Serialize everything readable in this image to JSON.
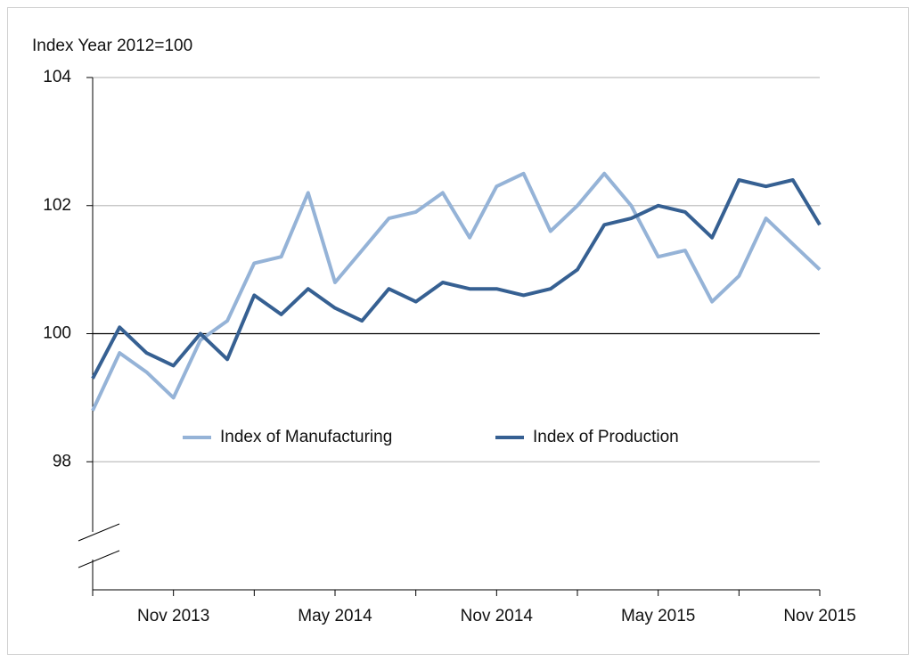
{
  "chart_data": {
    "type": "line",
    "title": "Index Year 2012=100",
    "categories": [
      null,
      null,
      null,
      "Nov 2013",
      null,
      null,
      null,
      null,
      null,
      "May 2014",
      null,
      null,
      null,
      null,
      null,
      "Nov 2014",
      null,
      null,
      null,
      null,
      null,
      "May 2015",
      null,
      null,
      null,
      null,
      null,
      "Nov 2015"
    ],
    "series": [
      {
        "name": "Index of Manufacturing",
        "color": "#95b3d7",
        "values": [
          98.8,
          99.7,
          99.4,
          99.0,
          99.9,
          100.2,
          101.1,
          101.2,
          102.2,
          100.8,
          101.3,
          101.8,
          101.9,
          102.2,
          101.5,
          102.3,
          102.5,
          101.6,
          102.0,
          102.5,
          102.0,
          101.2,
          101.3,
          100.5,
          100.9,
          101.8,
          101.4,
          101.0
        ]
      },
      {
        "name": "Index of Production",
        "color": "#366092",
        "values": [
          99.3,
          100.1,
          99.7,
          99.5,
          100.0,
          99.6,
          100.6,
          100.3,
          100.7,
          100.4,
          100.2,
          100.7,
          100.5,
          100.8,
          100.7,
          100.7,
          100.6,
          100.7,
          101.0,
          101.7,
          101.8,
          102.0,
          101.9,
          101.5,
          102.4,
          102.3,
          102.4,
          101.7
        ]
      }
    ],
    "ylim": [
      96,
      104
    ],
    "yticks": [
      98,
      100,
      102,
      104
    ],
    "reference_line": 100,
    "grid": true,
    "legend": "center"
  }
}
